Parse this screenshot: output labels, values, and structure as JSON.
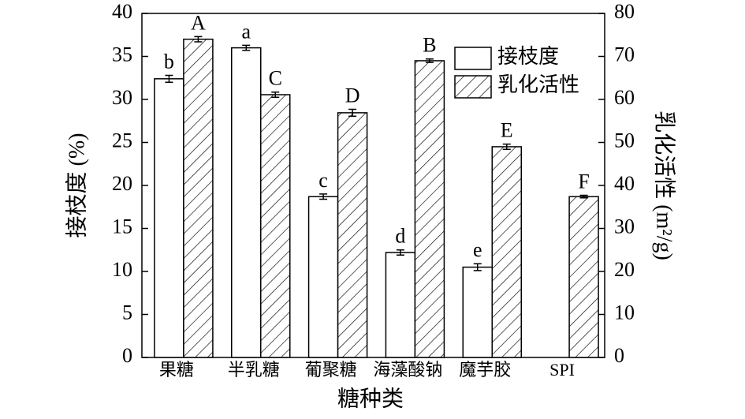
{
  "chart_data": {
    "type": "bar",
    "xlabel": "糖种类",
    "ylabel": "接枝度 (%)",
    "y2label": "乳化活性 (m²/g)",
    "categories": [
      "果糖",
      "半乳糖",
      "葡聚糖",
      "海藻酸钠",
      "魔芋胶",
      "SPI"
    ],
    "series": [
      {
        "name": "接枝度",
        "color": "#ffffff",
        "hatch": false,
        "axis": "y",
        "values": [
          32.4,
          36.0,
          18.7,
          12.2,
          10.5,
          null
        ],
        "errors": [
          0.4,
          0.3,
          0.3,
          0.3,
          0.4,
          null
        ],
        "labels": [
          "b",
          "a",
          "c",
          "d",
          "e",
          null
        ]
      },
      {
        "name": "乳化活性",
        "color": "#ffffff",
        "hatch": true,
        "axis": "y2",
        "values": [
          74.0,
          61.1,
          56.9,
          69.0,
          49.0,
          37.4
        ],
        "errors": [
          0.6,
          0.6,
          0.8,
          0.4,
          0.6,
          0.3
        ],
        "labels": [
          "A",
          "C",
          "D",
          "B",
          "E",
          "F"
        ]
      }
    ],
    "ylim": [
      0,
      40
    ],
    "yticks": [
      0,
      5,
      10,
      15,
      20,
      25,
      30,
      35,
      40
    ],
    "y2lim": [
      0,
      80
    ],
    "y2ticks": [
      0,
      10,
      20,
      30,
      40,
      50,
      60,
      70,
      80
    ],
    "legend": "upper right"
  }
}
